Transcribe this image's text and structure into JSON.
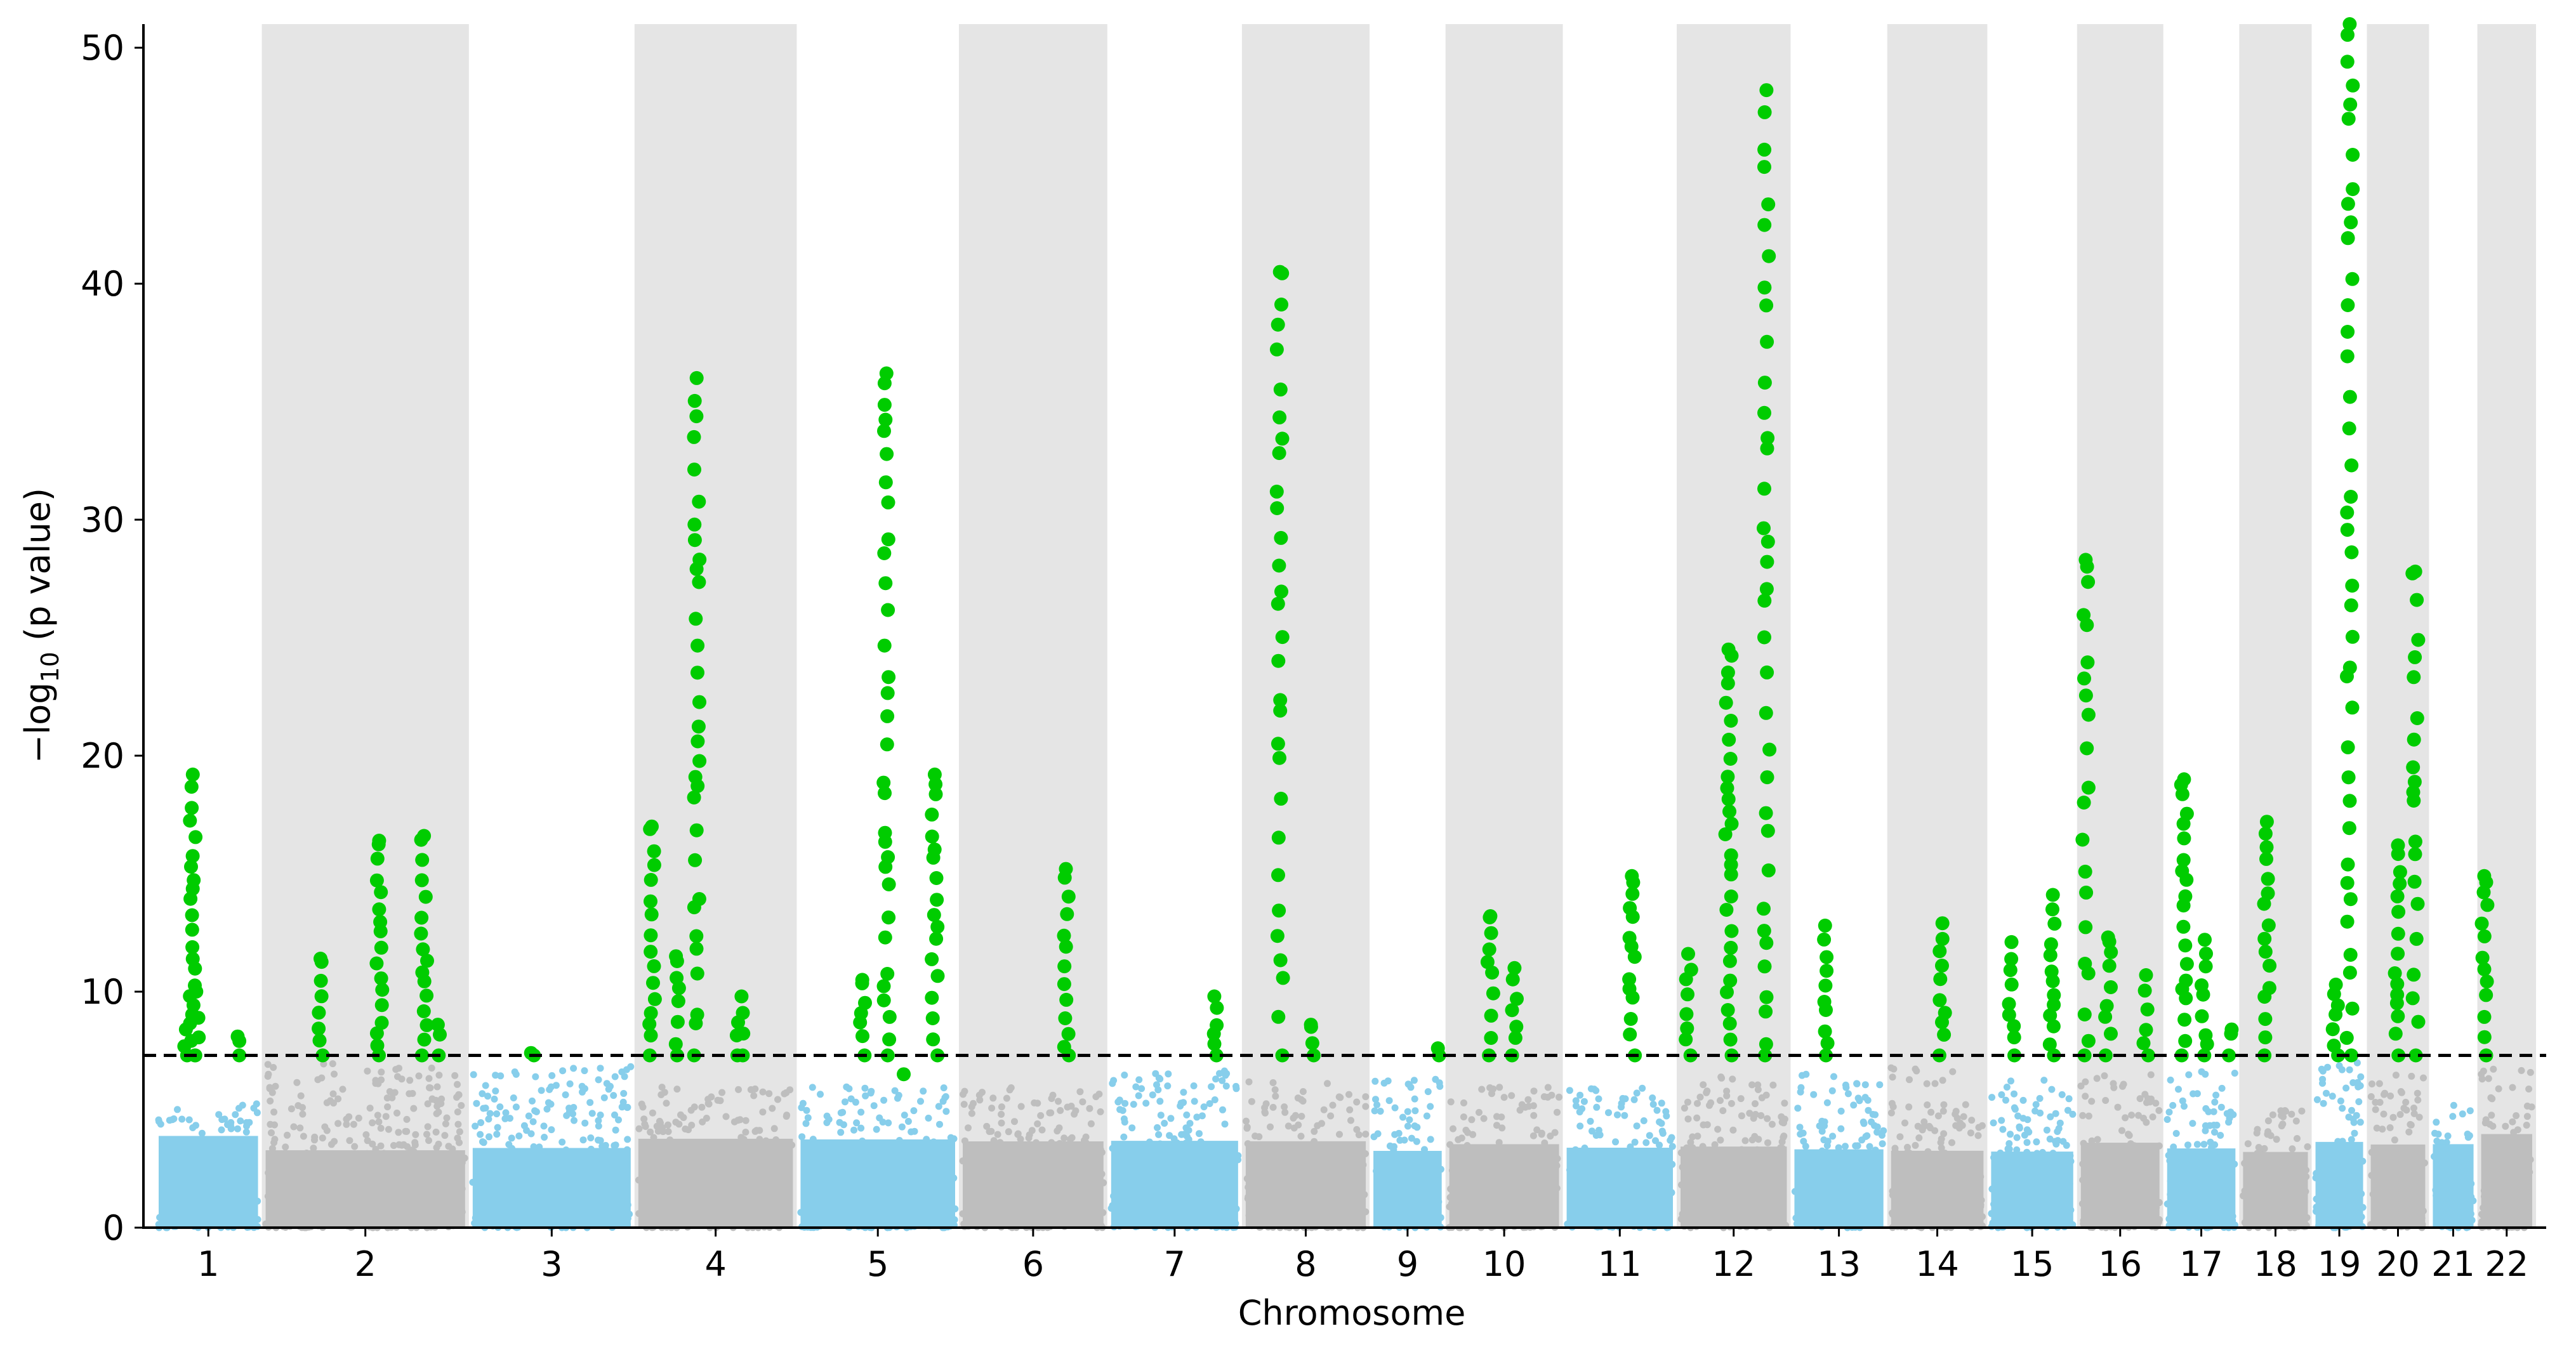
{
  "chart_data": {
    "type": "scatter",
    "subtype": "manhattan",
    "title": "",
    "xlabel": "Chromosome",
    "ylabel_prefix": "−log",
    "ylabel_sub": "10",
    "ylabel_suffix": " (p value)",
    "ylim": [
      0,
      51
    ],
    "yticks": [
      0,
      10,
      20,
      30,
      40,
      50
    ],
    "significance_threshold": 7.3,
    "grid": false,
    "colors": {
      "odd_chromosome": "#87CEEB",
      "even_chromosome": "#BEBEBE",
      "significant": "#00CC00",
      "shade": "#E5E5E5",
      "threshold_line": "#000000"
    },
    "chromosomes": [
      {
        "label": "1",
        "start": 0.0,
        "end": 1.55,
        "shaded": false,
        "base_max": 5.3,
        "peaks": [
          [
            0.55,
            19.2
          ],
          [
            0.6,
            10.0
          ],
          [
            2.0,
            8.4
          ],
          [
            2.75,
            8.1
          ]
        ]
      },
      {
        "label": "2",
        "start": 1.55,
        "end": 4.55,
        "shaded": true,
        "base_max": 7.0,
        "peaks": [
          [
            1.7,
            16.4
          ],
          [
            2.35,
            16.6
          ],
          [
            2.55,
            8.6
          ],
          [
            3.85,
            11.4
          ]
        ]
      },
      {
        "label": "3",
        "start": 4.55,
        "end": 6.95,
        "shaded": false,
        "base_max": 6.9,
        "peaks": [
          [
            5.7,
            7.4
          ]
        ]
      },
      {
        "label": "4",
        "start": 6.95,
        "end": 9.3,
        "shaded": true,
        "base_max": 6.0,
        "peaks": [
          [
            6.25,
            9.8
          ],
          [
            7.95,
            36.0
          ],
          [
            8.55,
            8.7
          ],
          [
            9.65,
            17.0
          ],
          [
            10.0,
            11.5
          ]
        ]
      },
      {
        "label": "5",
        "start": 9.3,
        "end": 11.65,
        "shaded": false,
        "base_max": 6.0,
        "peaks": [
          [
            10.35,
            10.5
          ],
          [
            10.95,
            6.5
          ],
          [
            13.05,
            36.2
          ],
          [
            13.75,
            19.2
          ]
        ]
      },
      {
        "label": "6",
        "start": 11.65,
        "end": 13.8,
        "shaded": true,
        "base_max": 6.0,
        "peaks": [
          [
            14.45,
            15.2
          ]
        ]
      },
      {
        "label": "7",
        "start": 13.8,
        "end": 15.75,
        "shaded": false,
        "base_max": 6.7,
        "peaks": [
          [
            15.2,
            9.8
          ]
        ]
      },
      {
        "label": "8",
        "start": 15.75,
        "end": 17.6,
        "shaded": true,
        "base_max": 6.2,
        "peaks": [
          [
            15.35,
            40.5
          ],
          [
            15.8,
            8.6
          ]
        ]
      },
      {
        "label": "9",
        "start": 17.6,
        "end": 18.7,
        "shaded": false,
        "base_max": 6.3,
        "peaks": [
          [
            17.55,
            7.6
          ]
        ]
      },
      {
        "label": "10",
        "start": 18.7,
        "end": 20.4,
        "shaded": true,
        "base_max": 6.0,
        "peaks": [
          [
            19.35,
            13.2
          ],
          [
            19.7,
            11.0
          ]
        ]
      },
      {
        "label": "11",
        "start": 20.4,
        "end": 22.05,
        "shaded": false,
        "base_max": 6.0,
        "peaks": [
          [
            20.8,
            14.9
          ]
        ]
      },
      {
        "label": "12",
        "start": 22.05,
        "end": 23.7,
        "shaded": true,
        "base_max": 6.5,
        "peaks": [
          [
            22.2,
            24.5
          ],
          [
            22.75,
            48.2
          ],
          [
            23.25,
            11.6
          ]
        ]
      },
      {
        "label": "13",
        "start": 23.7,
        "end": 25.1,
        "shaded": false,
        "base_max": 6.5,
        "peaks": [
          [
            24.3,
            12.8
          ]
        ]
      },
      {
        "label": "14",
        "start": 25.1,
        "end": 26.55,
        "shaded": true,
        "base_max": 6.8,
        "peaks": [
          [
            25.45,
            12.9
          ]
        ]
      },
      {
        "label": "15",
        "start": 26.55,
        "end": 27.85,
        "shaded": false,
        "base_max": 6.5,
        "peaks": [
          [
            26.35,
            12.1
          ],
          [
            26.95,
            14.1
          ]
        ]
      },
      {
        "label": "16",
        "start": 27.85,
        "end": 29.1,
        "shaded": true,
        "base_max": 6.5,
        "peaks": [
          [
            27.5,
            28.3
          ],
          [
            27.95,
            12.3
          ],
          [
            28.5,
            10.7
          ]
        ]
      },
      {
        "label": "17",
        "start": 29.1,
        "end": 30.2,
        "shaded": false,
        "base_max": 6.7,
        "peaks": [
          [
            28.55,
            8.4
          ],
          [
            28.9,
            19.0
          ],
          [
            29.2,
            12.2
          ]
        ]
      },
      {
        "label": "18",
        "start": 30.2,
        "end": 31.25,
        "shaded": true,
        "base_max": 5.0,
        "peaks": [
          [
            30.85,
            17.2
          ]
        ]
      },
      {
        "label": "19",
        "start": 31.25,
        "end": 32.05,
        "shaded": false,
        "base_max": 7.0,
        "peaks": [
          [
            31.75,
            51.0
          ],
          [
            31.55,
            10.3
          ]
        ]
      },
      {
        "label": "20",
        "start": 32.05,
        "end": 32.95,
        "shaded": true,
        "base_max": 6.5,
        "peaks": [
          [
            32.2,
            27.8
          ],
          [
            32.85,
            16.2
          ]
        ]
      },
      {
        "label": "21",
        "start": 32.95,
        "end": 33.65,
        "shaded": false,
        "base_max": 5.3,
        "peaks": []
      },
      {
        "label": "22",
        "start": 33.65,
        "end": 34.5,
        "shaded": true,
        "base_max": 6.8,
        "peaks": [
          [
            34.1,
            14.9
          ]
        ]
      }
    ]
  }
}
